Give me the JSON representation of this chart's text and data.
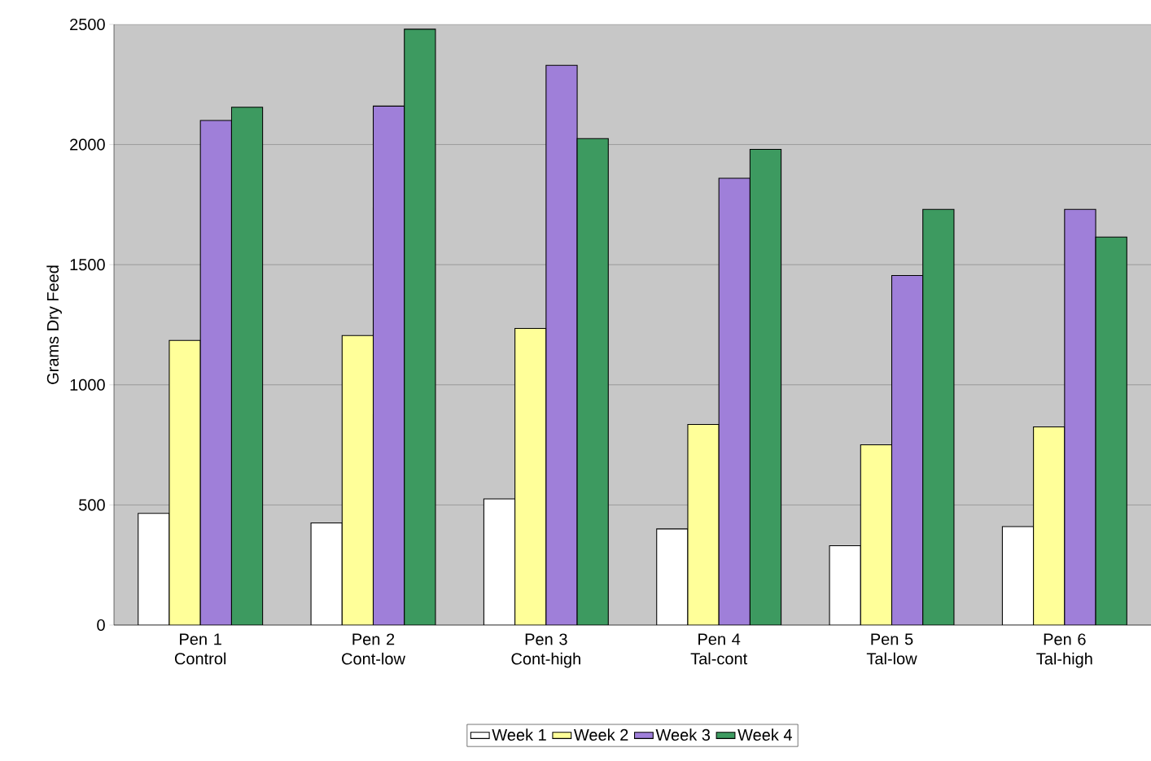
{
  "chart_data": {
    "type": "bar",
    "ylabel": "Grams Dry Feed",
    "categories": [
      "Pen 1 Control",
      "Pen 2 Cont-low",
      "Pen 3 Cont-high",
      "Pen 4 Tal-cont",
      "Pen 5 Tal-low",
      "Pen 6 Tal-high"
    ],
    "series": [
      {
        "name": "Week 1",
        "color": "#ffffff",
        "values": [
          465,
          425,
          525,
          400,
          330,
          410
        ]
      },
      {
        "name": "Week 2",
        "color": "#ffff99",
        "values": [
          1185,
          1205,
          1235,
          835,
          750,
          825
        ]
      },
      {
        "name": "Week 3",
        "color": "#9f7fd9",
        "values": [
          2100,
          2160,
          2330,
          1860,
          1455,
          1730
        ]
      },
      {
        "name": "Week 4",
        "color": "#3d9a60",
        "values": [
          2155,
          2480,
          2025,
          1980,
          1730,
          1615
        ]
      }
    ],
    "ylim": [
      0,
      2500
    ],
    "yticks": [
      0,
      500,
      1000,
      1500,
      2000,
      2500
    ],
    "grid": "y",
    "legend": "bottom"
  }
}
